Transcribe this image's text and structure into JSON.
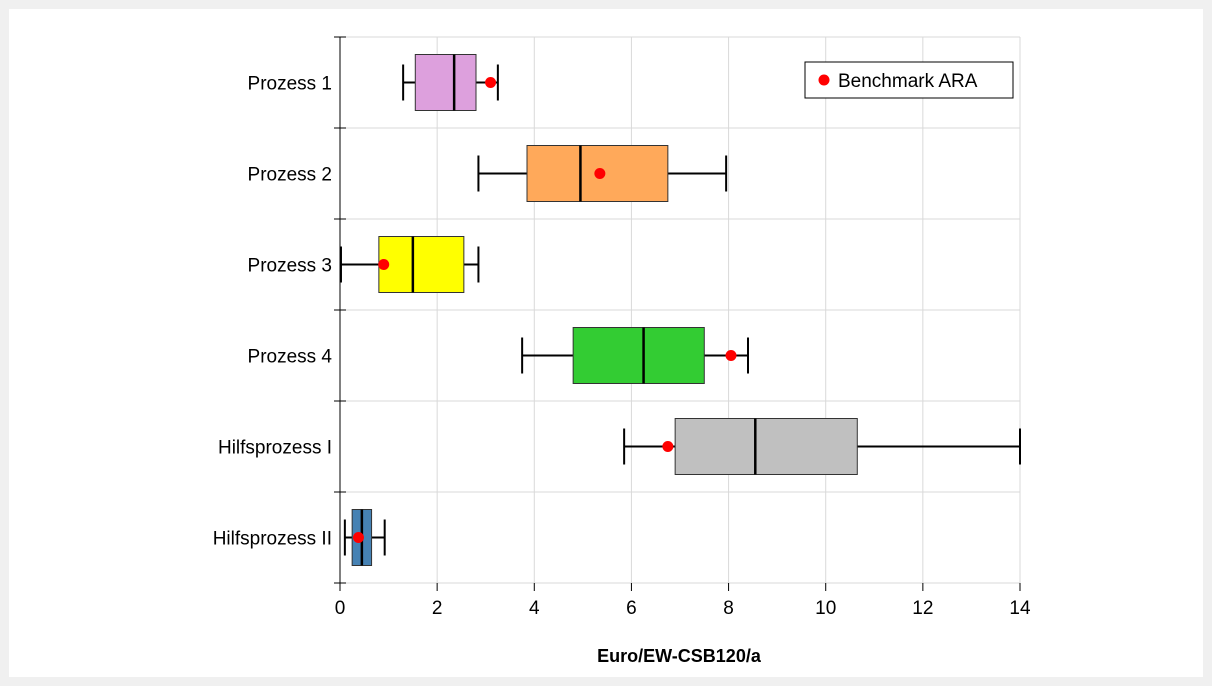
{
  "chart_data": {
    "type": "boxplot",
    "orientation": "horizontal",
    "xlabel": "Euro/EW-CSB120/a",
    "xlim": [
      0,
      14
    ],
    "xticks": [
      0,
      2,
      4,
      6,
      8,
      10,
      12,
      14
    ],
    "grid": true,
    "legend": {
      "position": "top-right",
      "entries": [
        {
          "label": "Benchmark ARA",
          "marker": "dot",
          "color": "#ff0000"
        }
      ]
    },
    "categories": [
      {
        "label": "Prozess 1",
        "whisker_low": 1.3,
        "q1": 1.55,
        "median": 2.35,
        "q3": 2.8,
        "whisker_high": 3.25,
        "benchmark": 3.1,
        "color": "#dda0dd"
      },
      {
        "label": "Prozess 2",
        "whisker_low": 2.85,
        "q1": 3.85,
        "median": 4.95,
        "q3": 6.75,
        "whisker_high": 7.95,
        "benchmark": 5.35,
        "color": "#ffa95a"
      },
      {
        "label": "Prozess 3",
        "whisker_low": 0.02,
        "q1": 0.8,
        "median": 1.5,
        "q3": 2.55,
        "whisker_high": 2.85,
        "benchmark": 0.9,
        "color": "#ffff00"
      },
      {
        "label": "Prozess 4",
        "whisker_low": 3.75,
        "q1": 4.8,
        "median": 6.25,
        "q3": 7.5,
        "whisker_high": 8.4,
        "benchmark": 8.05,
        "color": "#33cc33"
      },
      {
        "label": "Hilfsprozess I",
        "whisker_low": 5.85,
        "q1": 6.9,
        "median": 8.55,
        "q3": 10.65,
        "whisker_high": 14.0,
        "benchmark": 6.75,
        "color": "#c0c0c0"
      },
      {
        "label": "Hilfsprozess II",
        "whisker_low": 0.1,
        "q1": 0.25,
        "median": 0.45,
        "q3": 0.65,
        "whisker_high": 0.92,
        "benchmark": 0.38,
        "color": "#4682b4"
      }
    ]
  }
}
